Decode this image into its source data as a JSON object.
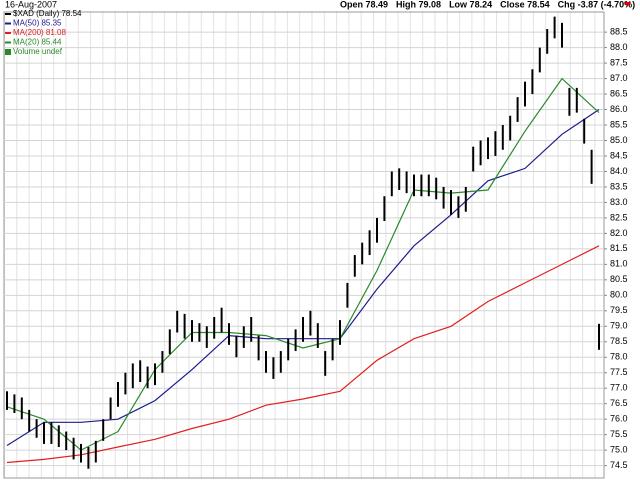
{
  "chart_data": {
    "type": "ohlc",
    "date": "16-Aug-2007",
    "quote": [
      "Open 78.49",
      "High 79.08",
      "Low 78.24",
      "Close 78.54",
      "Chg -3.87 (-4.70%)"
    ],
    "ylim": [
      74.1,
      89.15
    ],
    "yticks": [
      74.5,
      {
        "value": 75,
        "label": "75.0"
      },
      75.5,
      {
        "value": 76,
        "label": "76.0"
      },
      76.5,
      {
        "value": 77,
        "label": "77.0"
      },
      77.5,
      {
        "value": 78,
        "label": "78.0"
      },
      78.5,
      {
        "value": 79,
        "label": "79.0"
      },
      79.5,
      {
        "value": 80,
        "label": "80.0"
      },
      80.5,
      {
        "value": 81,
        "label": "81.0"
      },
      81.5,
      {
        "value": 82,
        "label": "82.0"
      },
      82.5,
      {
        "value": 83,
        "label": "83.0"
      },
      83.5,
      {
        "value": 84,
        "label": "84.0"
      },
      84.5,
      {
        "value": 85,
        "label": "85.0"
      },
      85.5,
      {
        "value": 86,
        "label": "86.0"
      },
      86.5,
      {
        "value": 87,
        "label": "87.0"
      },
      87.5,
      {
        "value": 88,
        "label": "88.0"
      },
      88.5
    ],
    "grid": true,
    "bars": {
      "name": "$XAD (Daily) 78.54",
      "color": "#000000",
      "low": [
        76.3,
        76.2,
        76.0,
        75.6,
        75.4,
        75.2,
        75.2,
        75.1,
        75.0,
        74.7,
        74.6,
        74.4,
        74.6,
        75.3,
        76.0,
        76.4,
        76.8,
        77.0,
        77.2,
        77.0,
        77.1,
        77.5,
        78.1,
        78.8,
        78.6,
        78.5,
        78.5,
        78.3,
        78.6,
        78.8,
        78.4,
        78.0,
        78.3,
        78.5,
        77.9,
        77.5,
        77.3,
        77.5,
        77.9,
        78.2,
        78.5,
        78.7,
        78.3,
        77.4,
        77.9,
        78.4,
        79.6,
        80.6,
        81.0,
        81.3,
        81.7,
        82.4,
        83.2,
        83.4,
        83.3,
        83.2,
        83.2,
        83.2,
        83.1,
        82.8,
        82.6,
        82.5,
        82.7,
        84.0,
        84.2,
        84.4,
        84.5,
        84.7,
        85.0,
        85.6,
        86.1,
        86.5,
        87.2,
        87.8,
        88.3,
        88.0,
        85.8,
        85.9,
        84.9,
        83.6,
        78.24
      ],
      "high": [
        76.9,
        76.8,
        76.7,
        76.3,
        76.0,
        75.9,
        75.9,
        75.8,
        75.6,
        75.4,
        75.2,
        75.1,
        75.3,
        76.0,
        76.7,
        77.2,
        77.5,
        77.8,
        77.9,
        77.7,
        77.8,
        78.2,
        78.9,
        79.5,
        79.4,
        79.2,
        79.1,
        79.0,
        79.3,
        79.6,
        79.1,
        78.7,
        79.0,
        79.3,
        78.7,
        78.2,
        78.0,
        78.2,
        78.6,
        78.9,
        79.3,
        79.5,
        79.1,
        78.2,
        78.6,
        79.2,
        80.4,
        81.3,
        81.7,
        82.1,
        82.5,
        83.2,
        84.0,
        84.1,
        84.0,
        83.9,
        83.9,
        83.9,
        83.8,
        83.5,
        83.4,
        83.2,
        83.5,
        84.8,
        85.0,
        85.1,
        85.3,
        85.5,
        85.8,
        86.4,
        86.9,
        87.3,
        88.0,
        88.6,
        89.0,
        88.8,
        86.7,
        86.7,
        85.7,
        84.7,
        79.08
      ]
    },
    "series": [
      {
        "name": "MA(50) 85.35",
        "color": "#1c1c8c",
        "x": [
          0,
          5,
          10,
          15,
          20,
          25,
          30,
          35,
          40,
          45,
          50,
          55,
          60,
          65,
          70,
          75,
          80
        ],
        "values": [
          75.15,
          75.9,
          75.9,
          76.0,
          76.6,
          77.6,
          78.7,
          78.6,
          78.6,
          78.6,
          80.2,
          81.6,
          82.6,
          83.7,
          84.1,
          85.2,
          86.0
        ]
      },
      {
        "name": "MA(200) 81.08",
        "color": "#e02020",
        "x": [
          0,
          5,
          10,
          15,
          20,
          25,
          30,
          35,
          40,
          45,
          50,
          55,
          60,
          65,
          70,
          75,
          80
        ],
        "values": [
          74.6,
          74.7,
          74.85,
          75.1,
          75.35,
          75.7,
          76.0,
          76.45,
          76.65,
          76.9,
          77.9,
          78.6,
          79.0,
          79.8,
          80.4,
          81.0,
          81.6
        ]
      },
      {
        "name": "MA(20) 85.44",
        "color": "#2a8a2a",
        "x": [
          0,
          5,
          10,
          15,
          20,
          25,
          30,
          35,
          40,
          45,
          50,
          55,
          60,
          65,
          70,
          75,
          80
        ],
        "values": [
          76.4,
          76.0,
          75.0,
          75.6,
          77.6,
          78.8,
          78.8,
          78.7,
          78.3,
          78.6,
          80.8,
          83.4,
          83.3,
          83.4,
          85.3,
          87.0,
          85.9
        ]
      }
    ],
    "volume_label": "Volume undef"
  }
}
